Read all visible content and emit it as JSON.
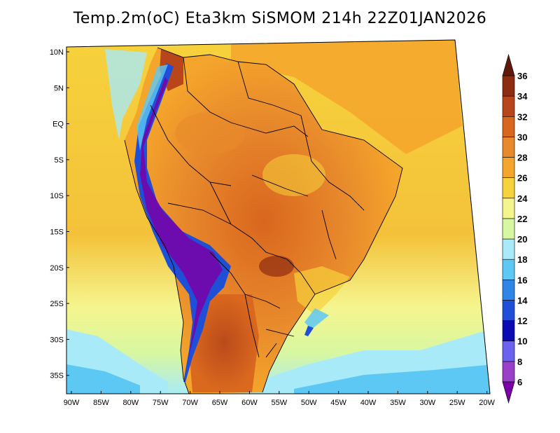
{
  "title": "Temp.2m(oC) Eta3km SiSMOM 214h 22Z01JAN2026",
  "lat_labels": [
    "10N",
    "5N",
    "EQ",
    "5S",
    "10S",
    "15S",
    "20S",
    "25S",
    "30S",
    "35S"
  ],
  "lon_labels": [
    "90W",
    "85W",
    "80W",
    "75W",
    "70W",
    "65W",
    "60W",
    "55W",
    "50W",
    "45W",
    "40W",
    "35W",
    "30W",
    "25W",
    "20W"
  ],
  "colorbar": {
    "levels": [
      "6",
      "8",
      "10",
      "12",
      "14",
      "16",
      "18",
      "20",
      "22",
      "24",
      "26",
      "28",
      "30",
      "32",
      "34",
      "36"
    ],
    "colors": [
      "#7a00a8",
      "#9a3fc9",
      "#6b63ee",
      "#0b0bb4",
      "#1f4fd6",
      "#2f86e8",
      "#5ec8f4",
      "#a8eaf8",
      "#d8f7a1",
      "#f5f58e",
      "#f6d23c",
      "#f4a52b",
      "#e88a2c",
      "#d9661e",
      "#b8461a",
      "#8e2c10",
      "#5e1a0a"
    ]
  }
}
